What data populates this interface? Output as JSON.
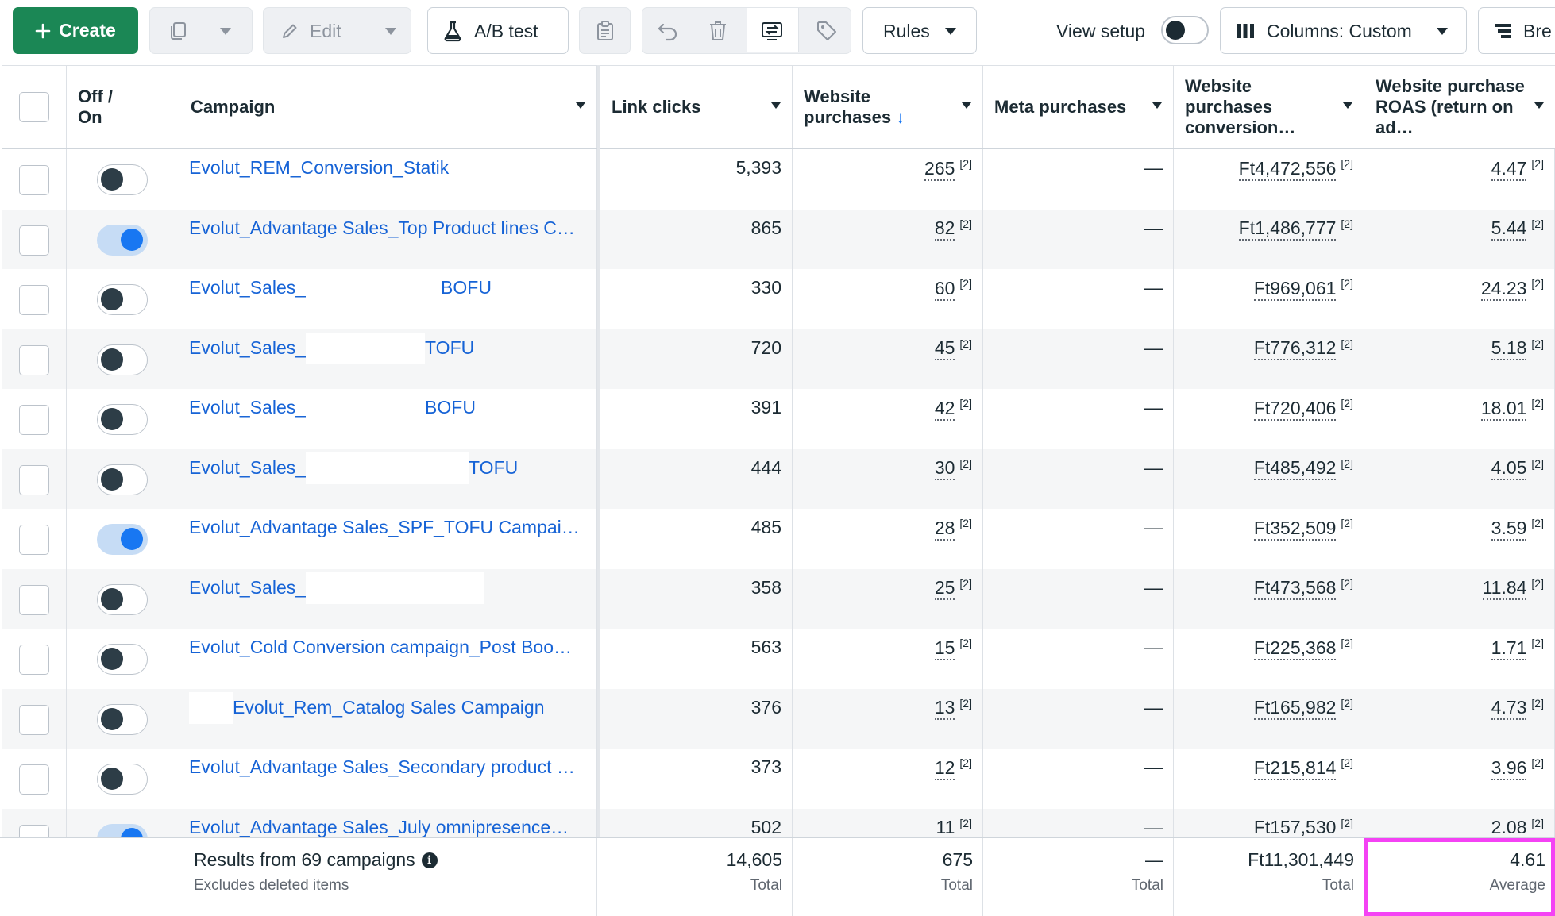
{
  "toolbar": {
    "create_label": "Create",
    "edit_label": "Edit",
    "ab_test_label": "A/B test",
    "rules_label": "Rules",
    "view_setup_label": "View setup",
    "columns_label": "Columns: Custom",
    "breakdown_label": "Bre"
  },
  "columns": {
    "off_on": "Off / On",
    "campaign": "Campaign",
    "link_clicks": "Link clicks",
    "website_purchases": "Website purchases",
    "website_purchases_arrow": "↓",
    "meta_purchases": "Meta purchases",
    "conversion_value": "Website purchases conversion…",
    "roas": "Website purchase ROAS (return on ad…"
  },
  "rows": [
    {
      "name": "Evolut_REM_Conversion_Statik",
      "name_suffix": "",
      "status": "off",
      "link_clicks": "5,393",
      "purchases": "265",
      "meta": "—",
      "conv_value": "Ft4,472,556",
      "roas": "4.47",
      "note": "[2]"
    },
    {
      "name": "Evolut_Advantage Sales_Top Product lines C…",
      "name_suffix": "",
      "status": "on",
      "link_clicks": "865",
      "purchases": "82",
      "meta": "—",
      "conv_value": "Ft1,486,777",
      "roas": "5.44",
      "note": "[2]"
    },
    {
      "name": "Evolut_Sales_",
      "name_suffix": "BOFU",
      "status": "off",
      "link_clicks": "330",
      "purchases": "60",
      "meta": "—",
      "conv_value": "Ft969,061",
      "roas": "24.23",
      "note": "[2]"
    },
    {
      "name": "Evolut_Sales_",
      "name_suffix": "TOFU",
      "status": "off",
      "link_clicks": "720",
      "purchases": "45",
      "meta": "—",
      "conv_value": "Ft776,312",
      "roas": "5.18",
      "note": "[2]"
    },
    {
      "name": "Evolut_Sales_",
      "name_suffix": "BOFU",
      "status": "off",
      "link_clicks": "391",
      "purchases": "42",
      "meta": "—",
      "conv_value": "Ft720,406",
      "roas": "18.01",
      "note": "[2]"
    },
    {
      "name": "Evolut_Sales_",
      "name_suffix": "TOFU",
      "status": "off",
      "link_clicks": "444",
      "purchases": "30",
      "meta": "—",
      "conv_value": "Ft485,492",
      "roas": "4.05",
      "note": "[2]"
    },
    {
      "name": "Evolut_Advantage Sales_SPF_TOFU Campai…",
      "name_suffix": "",
      "status": "on",
      "link_clicks": "485",
      "purchases": "28",
      "meta": "—",
      "conv_value": "Ft352,509",
      "roas": "3.59",
      "note": "[2]"
    },
    {
      "name": "Evolut_Sales_",
      "name_suffix": "",
      "status": "off",
      "link_clicks": "358",
      "purchases": "25",
      "meta": "—",
      "conv_value": "Ft473,568",
      "roas": "11.84",
      "note": "[2]"
    },
    {
      "name": "Evolut_Cold Conversion campaign_Post Boo…",
      "name_suffix": "",
      "status": "off",
      "link_clicks": "563",
      "purchases": "15",
      "meta": "—",
      "conv_value": "Ft225,368",
      "roas": "1.71",
      "note": "[2]"
    },
    {
      "name": "",
      "name_suffix": "Evolut_Rem_Catalog Sales Campaign",
      "status": "off",
      "link_clicks": "376",
      "purchases": "13",
      "meta": "—",
      "conv_value": "Ft165,982",
      "roas": "4.73",
      "note": "[2]"
    },
    {
      "name": "Evolut_Advantage Sales_Secondary product …",
      "name_suffix": "",
      "status": "off",
      "link_clicks": "373",
      "purchases": "12",
      "meta": "—",
      "conv_value": "Ft215,814",
      "roas": "3.96",
      "note": "[2]"
    },
    {
      "name": "Evolut_Advantage Sales_July omnipresence…",
      "name_suffix": "",
      "status": "on",
      "link_clicks": "502",
      "purchases": "11",
      "meta": "—",
      "conv_value": "Ft157,530",
      "roas": "2.08",
      "note": "[2]"
    }
  ],
  "footer": {
    "results_label": "Results from 69 campaigns",
    "info_glyph": "i",
    "excludes_label": "Excludes deleted items",
    "link_clicks_total": "14,605",
    "purchases_total": "675",
    "meta_total": "—",
    "conv_value_total": "Ft11,301,449",
    "roas_average": "4.61",
    "total_label": "Total",
    "average_label": "Average"
  },
  "colors": {
    "create_green": "#1b8755",
    "link_blue": "#1663d6",
    "toggle_on": "#1877f2",
    "highlight": "#f442f4"
  }
}
